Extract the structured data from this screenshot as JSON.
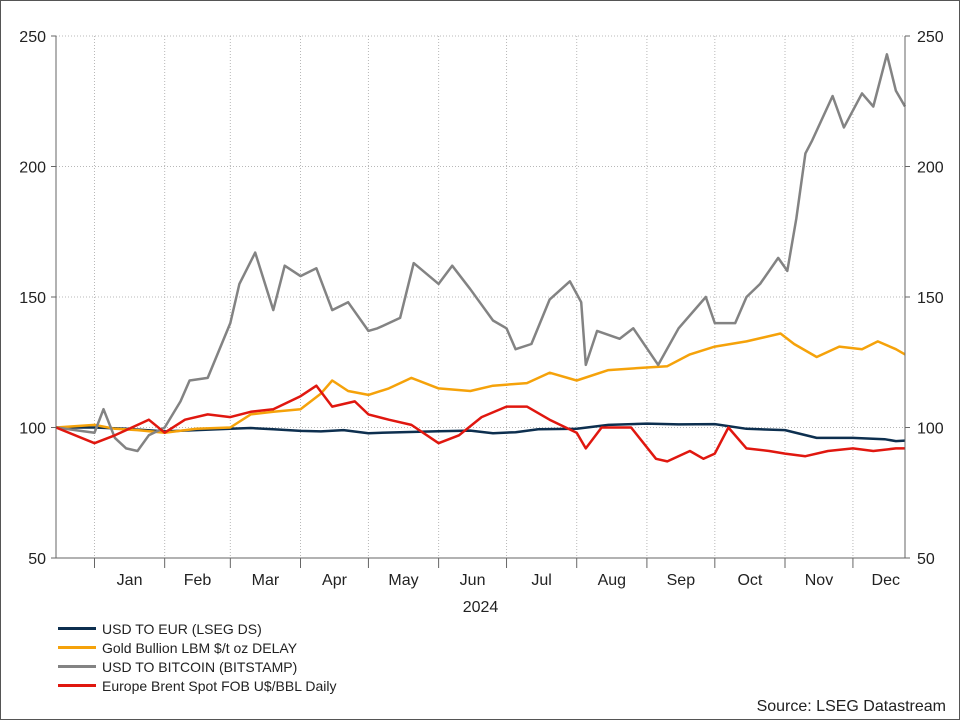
{
  "chart_data": {
    "type": "line",
    "x_axis": {
      "months": [
        "Jan",
        "Feb",
        "Mar",
        "Apr",
        "May",
        "Jun",
        "Jul",
        "Aug",
        "Sep",
        "Oct",
        "Nov",
        "Dec"
      ],
      "year_label": "2024"
    },
    "y_axis": {
      "ylim": [
        50,
        250
      ],
      "ticks": [
        50,
        100,
        150,
        200,
        250
      ],
      "tick_labels": [
        "50",
        "100",
        "150",
        "200",
        "250"
      ],
      "dual_side_labels": true
    },
    "grid": true,
    "legend_position": "bottom-left",
    "source": "Source: LSEG Datastream",
    "series": [
      {
        "name": "USD TO EUR (LSEG DS)",
        "color": "#0d2f4f",
        "points": [
          [
            "2023-12-15",
            100
          ],
          [
            "2024-01-01",
            100
          ],
          [
            "2024-01-15",
            99.5
          ],
          [
            "2024-02-01",
            98.5
          ],
          [
            "2024-02-15",
            99
          ],
          [
            "2024-03-01",
            99.5
          ],
          [
            "2024-03-10",
            99.8
          ],
          [
            "2024-03-20",
            99.3
          ],
          [
            "2024-04-01",
            98.7
          ],
          [
            "2024-04-10",
            98.5
          ],
          [
            "2024-04-20",
            99
          ],
          [
            "2024-05-01",
            97.8
          ],
          [
            "2024-05-15",
            98.2
          ],
          [
            "2024-06-01",
            98.6
          ],
          [
            "2024-06-15",
            98.8
          ],
          [
            "2024-06-25",
            97.8
          ],
          [
            "2024-07-05",
            98.2
          ],
          [
            "2024-07-15",
            99.3
          ],
          [
            "2024-08-01",
            99.5
          ],
          [
            "2024-08-15",
            101
          ],
          [
            "2024-09-01",
            101.5
          ],
          [
            "2024-09-15",
            101.2
          ],
          [
            "2024-10-01",
            101.3
          ],
          [
            "2024-10-15",
            99.5
          ],
          [
            "2024-11-01",
            99
          ],
          [
            "2024-11-15",
            96
          ],
          [
            "2024-12-01",
            96
          ],
          [
            "2024-12-15",
            95.5
          ],
          [
            "2024-12-20",
            94.8
          ],
          [
            "2024-12-24",
            95
          ]
        ]
      },
      {
        "name": "Gold Bullion LBM $/t oz DELAY",
        "color": "#f5a20a",
        "points": [
          [
            "2023-12-15",
            100
          ],
          [
            "2024-01-01",
            101
          ],
          [
            "2024-01-10",
            99.5
          ],
          [
            "2024-01-20",
            99
          ],
          [
            "2024-02-01",
            98
          ],
          [
            "2024-02-15",
            99.5
          ],
          [
            "2024-03-01",
            100
          ],
          [
            "2024-03-10",
            105
          ],
          [
            "2024-03-20",
            106
          ],
          [
            "2024-04-01",
            107
          ],
          [
            "2024-04-10",
            113
          ],
          [
            "2024-04-15",
            118
          ],
          [
            "2024-04-22",
            114
          ],
          [
            "2024-05-01",
            112.5
          ],
          [
            "2024-05-10",
            115
          ],
          [
            "2024-05-20",
            119
          ],
          [
            "2024-06-01",
            115
          ],
          [
            "2024-06-15",
            114
          ],
          [
            "2024-06-25",
            116
          ],
          [
            "2024-07-10",
            117
          ],
          [
            "2024-07-20",
            121
          ],
          [
            "2024-08-01",
            118
          ],
          [
            "2024-08-15",
            122
          ],
          [
            "2024-09-01",
            123
          ],
          [
            "2024-09-10",
            123.5
          ],
          [
            "2024-09-20",
            128
          ],
          [
            "2024-10-01",
            131
          ],
          [
            "2024-10-15",
            133
          ],
          [
            "2024-10-30",
            136
          ],
          [
            "2024-11-05",
            132
          ],
          [
            "2024-11-15",
            127
          ],
          [
            "2024-11-25",
            131
          ],
          [
            "2024-12-05",
            130
          ],
          [
            "2024-12-12",
            133
          ],
          [
            "2024-12-20",
            130
          ],
          [
            "2024-12-24",
            128
          ]
        ]
      },
      {
        "name": "USD TO BITCOIN (BITSTAMP)",
        "color": "#838383",
        "points": [
          [
            "2023-12-15",
            100
          ],
          [
            "2024-01-01",
            98
          ],
          [
            "2024-01-05",
            107
          ],
          [
            "2024-01-10",
            96
          ],
          [
            "2024-01-15",
            92
          ],
          [
            "2024-01-20",
            91
          ],
          [
            "2024-01-25",
            97
          ],
          [
            "2024-02-01",
            100
          ],
          [
            "2024-02-08",
            110
          ],
          [
            "2024-02-12",
            118
          ],
          [
            "2024-02-20",
            119
          ],
          [
            "2024-03-01",
            140
          ],
          [
            "2024-03-05",
            155
          ],
          [
            "2024-03-12",
            167
          ],
          [
            "2024-03-20",
            145
          ],
          [
            "2024-03-25",
            162
          ],
          [
            "2024-04-01",
            158
          ],
          [
            "2024-04-08",
            161
          ],
          [
            "2024-04-15",
            145
          ],
          [
            "2024-04-22",
            148
          ],
          [
            "2024-05-01",
            137
          ],
          [
            "2024-05-05",
            138
          ],
          [
            "2024-05-15",
            142
          ],
          [
            "2024-05-21",
            163
          ],
          [
            "2024-06-01",
            155
          ],
          [
            "2024-06-07",
            162
          ],
          [
            "2024-06-15",
            153
          ],
          [
            "2024-06-25",
            141
          ],
          [
            "2024-07-01",
            138
          ],
          [
            "2024-07-05",
            130
          ],
          [
            "2024-07-12",
            132
          ],
          [
            "2024-07-20",
            149
          ],
          [
            "2024-07-29",
            156
          ],
          [
            "2024-08-03",
            148
          ],
          [
            "2024-08-05",
            124
          ],
          [
            "2024-08-10",
            137
          ],
          [
            "2024-08-20",
            134
          ],
          [
            "2024-08-26",
            138
          ],
          [
            "2024-09-06",
            124
          ],
          [
            "2024-09-15",
            138
          ],
          [
            "2024-09-27",
            150
          ],
          [
            "2024-10-01",
            140
          ],
          [
            "2024-10-10",
            140
          ],
          [
            "2024-10-15",
            150
          ],
          [
            "2024-10-21",
            155
          ],
          [
            "2024-10-29",
            165
          ],
          [
            "2024-11-02",
            160
          ],
          [
            "2024-11-06",
            180
          ],
          [
            "2024-11-10",
            205
          ],
          [
            "2024-11-13",
            210
          ],
          [
            "2024-11-22",
            227
          ],
          [
            "2024-11-27",
            215
          ],
          [
            "2024-12-05",
            228
          ],
          [
            "2024-12-10",
            223
          ],
          [
            "2024-12-16",
            243
          ],
          [
            "2024-12-20",
            229
          ],
          [
            "2024-12-24",
            223
          ]
        ]
      },
      {
        "name": "Europe Brent Spot FOB U$/BBL Daily",
        "color": "#e0170f",
        "points": [
          [
            "2023-12-15",
            100
          ],
          [
            "2024-01-01",
            94
          ],
          [
            "2024-01-10",
            97
          ],
          [
            "2024-01-15",
            99
          ],
          [
            "2024-01-25",
            103
          ],
          [
            "2024-02-01",
            98
          ],
          [
            "2024-02-10",
            103
          ],
          [
            "2024-02-20",
            105
          ],
          [
            "2024-03-01",
            104
          ],
          [
            "2024-03-10",
            106
          ],
          [
            "2024-03-20",
            107
          ],
          [
            "2024-04-01",
            112
          ],
          [
            "2024-04-08",
            116
          ],
          [
            "2024-04-15",
            108
          ],
          [
            "2024-04-25",
            110
          ],
          [
            "2024-05-01",
            105
          ],
          [
            "2024-05-10",
            103
          ],
          [
            "2024-05-20",
            101
          ],
          [
            "2024-06-01",
            94
          ],
          [
            "2024-06-10",
            97
          ],
          [
            "2024-06-20",
            104
          ],
          [
            "2024-07-01",
            108
          ],
          [
            "2024-07-10",
            108
          ],
          [
            "2024-07-20",
            103
          ],
          [
            "2024-08-01",
            98
          ],
          [
            "2024-08-05",
            92
          ],
          [
            "2024-08-12",
            100
          ],
          [
            "2024-08-25",
            100
          ],
          [
            "2024-09-05",
            88
          ],
          [
            "2024-09-10",
            87
          ],
          [
            "2024-09-20",
            91
          ],
          [
            "2024-09-26",
            88
          ],
          [
            "2024-10-01",
            90
          ],
          [
            "2024-10-07",
            100
          ],
          [
            "2024-10-15",
            92
          ],
          [
            "2024-10-25",
            91
          ],
          [
            "2024-11-01",
            90
          ],
          [
            "2024-11-10",
            89
          ],
          [
            "2024-11-20",
            91
          ],
          [
            "2024-12-01",
            92
          ],
          [
            "2024-12-10",
            91
          ],
          [
            "2024-12-20",
            92
          ],
          [
            "2024-12-24",
            92
          ]
        ]
      }
    ]
  }
}
